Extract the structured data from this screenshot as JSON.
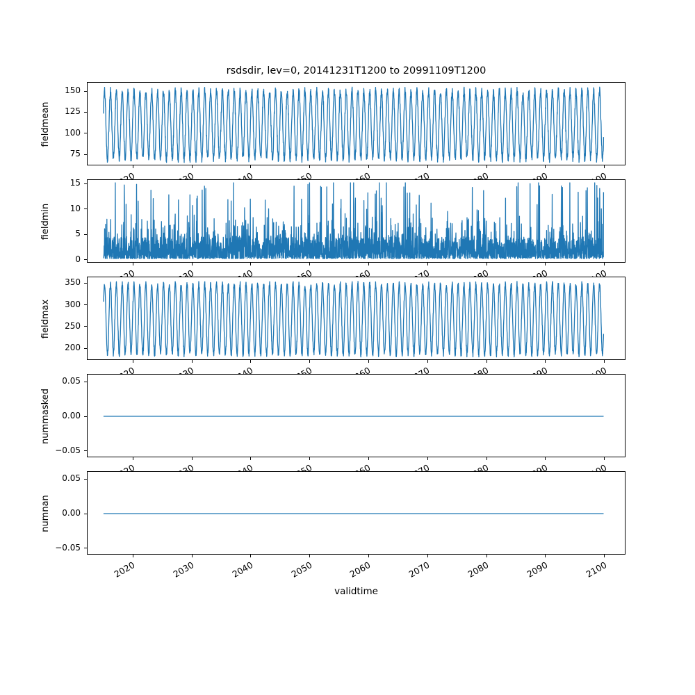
{
  "figure": {
    "title": "rsdsdir, lev=0, 20141231T1200 to 20991109T1200",
    "xlabel": "validtime",
    "line_color": "#1f77b4",
    "background_color": "#ffffff",
    "axes_edge_color": "#000000"
  },
  "chart_data": [
    {
      "type": "line",
      "ylabel": "fieldmean",
      "x_range": [
        2015.0,
        2099.87
      ],
      "xlim": [
        2012.3,
        2103.7
      ],
      "ylim": [
        61,
        160
      ],
      "yticks": [
        75,
        100,
        125,
        150
      ],
      "ytick_labels": [
        "75",
        "100",
        "125",
        "150"
      ],
      "xticks": [
        2020,
        2030,
        2040,
        2050,
        2060,
        2070,
        2080,
        2090,
        2100
      ],
      "xtick_labels": [
        "2020",
        "2030",
        "2040",
        "2050",
        "2060",
        "2070",
        "2080",
        "2090",
        "2100"
      ],
      "seed": 101,
      "pattern": {
        "kind": "seasonal",
        "mean": 110,
        "amplitude": 40,
        "noise": 5,
        "phase": 0.07,
        "samples_per_year": 36
      },
      "value_range_approx": [
        65,
        155
      ],
      "description": "Annual oscillation of field mean, roughly 65 to 155 each year from 2015 to 2100"
    },
    {
      "type": "line",
      "ylabel": "fieldmin",
      "x_range": [
        2015.0,
        2099.87
      ],
      "xlim": [
        2012.3,
        2103.7
      ],
      "ylim": [
        -0.75,
        15.75
      ],
      "yticks": [
        0,
        5,
        10,
        15
      ],
      "ytick_labels": [
        "0",
        "5",
        "10",
        "15"
      ],
      "xticks": [
        2020,
        2030,
        2040,
        2050,
        2060,
        2070,
        2080,
        2090,
        2100
      ],
      "xtick_labels": [
        "2020",
        "2030",
        "2040",
        "2050",
        "2060",
        "2070",
        "2080",
        "2090",
        "2100"
      ],
      "seed": 202,
      "pattern": {
        "kind": "spiky",
        "floor": 0.2,
        "base_max": 4.5,
        "mid_prob": 0.16,
        "mid_min": 1.5,
        "mid_span": 3.5,
        "spike_prob": 0.045,
        "spike_min": 5,
        "spike_span": 9.5,
        "cap": 15.2,
        "samples_per_year": 36
      },
      "value_range_approx": [
        0,
        15
      ],
      "description": "Noisy field minimum, mostly 0-5 with irregular spikes up to about 15"
    },
    {
      "type": "line",
      "ylabel": "fieldmax",
      "x_range": [
        2015.0,
        2099.87
      ],
      "xlim": [
        2012.3,
        2103.7
      ],
      "ylim": [
        172,
        363
      ],
      "yticks": [
        200,
        250,
        300,
        350
      ],
      "ytick_labels": [
        "200",
        "250",
        "300",
        "350"
      ],
      "xticks": [
        2020,
        2030,
        2040,
        2050,
        2060,
        2070,
        2080,
        2090,
        2100
      ],
      "xtick_labels": [
        "2020",
        "2030",
        "2040",
        "2050",
        "2060",
        "2070",
        "2080",
        "2090",
        "2100"
      ],
      "seed": 303,
      "pattern": {
        "kind": "seasonal",
        "mean": 267,
        "amplitude": 80,
        "noise": 7,
        "phase": 0.07,
        "samples_per_year": 36
      },
      "value_range_approx": [
        180,
        355
      ],
      "description": "Annual oscillation of field maximum, roughly 180 to 355 each year from 2015 to 2100"
    },
    {
      "type": "line",
      "ylabel": "nummasked",
      "x_range": [
        2015.0,
        2099.87
      ],
      "xlim": [
        2012.3,
        2103.7
      ],
      "ylim": [
        -0.0605,
        0.0605
      ],
      "yticks": [
        -0.05,
        0,
        0.05
      ],
      "ytick_labels": [
        "−0.05",
        "0.00",
        "0.05"
      ],
      "xticks": [
        2020,
        2030,
        2040,
        2050,
        2060,
        2070,
        2080,
        2090,
        2100
      ],
      "xtick_labels": [
        "2020",
        "2030",
        "2040",
        "2050",
        "2060",
        "2070",
        "2080",
        "2090",
        "2100"
      ],
      "seed": 404,
      "pattern": {
        "kind": "constant",
        "value": 0
      },
      "value_range_approx": [
        0,
        0
      ],
      "description": "Constant zero line for number of masked points"
    },
    {
      "type": "line",
      "ylabel": "numnan",
      "x_range": [
        2015.0,
        2099.87
      ],
      "xlim": [
        2012.3,
        2103.7
      ],
      "ylim": [
        -0.0605,
        0.0605
      ],
      "yticks": [
        -0.05,
        0,
        0.05
      ],
      "ytick_labels": [
        "−0.05",
        "0.00",
        "0.05"
      ],
      "xticks": [
        2020,
        2030,
        2040,
        2050,
        2060,
        2070,
        2080,
        2090,
        2100
      ],
      "xtick_labels": [
        "2020",
        "2030",
        "2040",
        "2050",
        "2060",
        "2070",
        "2080",
        "2090",
        "2100"
      ],
      "seed": 505,
      "pattern": {
        "kind": "constant",
        "value": 0
      },
      "value_range_approx": [
        0,
        0
      ],
      "description": "Constant zero line for number of NaN points"
    }
  ]
}
